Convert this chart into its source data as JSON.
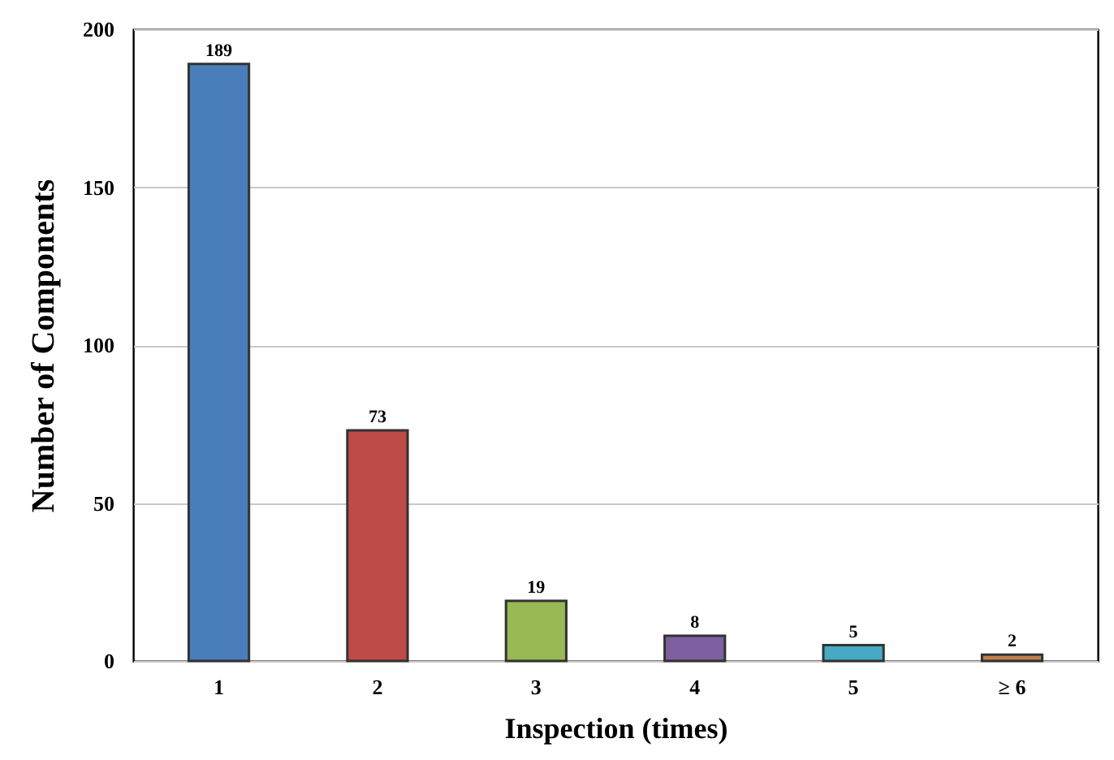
{
  "chart_data": {
    "type": "bar",
    "xlabel": "Inspection (times)",
    "ylabel": "Number of Components",
    "categories": [
      "1",
      "2",
      "3",
      "4",
      "5",
      "≥ 6"
    ],
    "values": [
      189,
      73,
      19,
      8,
      5,
      2
    ],
    "colors": [
      "#4a7ebb",
      "#be4b48",
      "#98b954",
      "#7d60a0",
      "#46aac5",
      "#c0804a"
    ],
    "ylim": [
      0,
      200
    ],
    "yticks": [
      0,
      50,
      100,
      150,
      200
    ],
    "grid": "y",
    "data_labels": true
  }
}
